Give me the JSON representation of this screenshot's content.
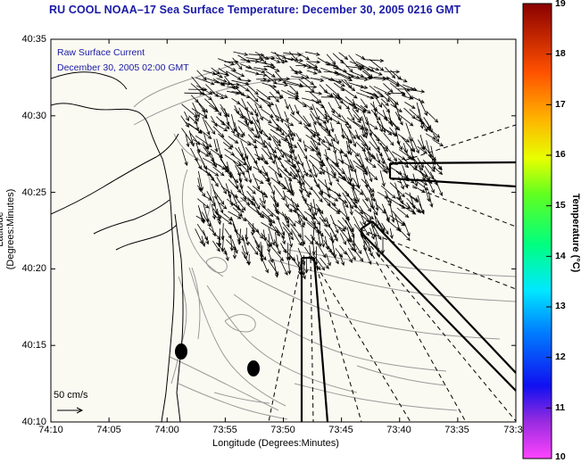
{
  "title": "RU COOL  NOAA–17  Sea Surface Temperature:  December 30, 2005 0216 GMT",
  "annotation": {
    "line1": "Raw Surface Current",
    "line2": "December 30, 2005 02:00 GMT"
  },
  "axes": {
    "xlabel": "Longitude (Degrees:Minutes)",
    "ylabel": "Latitude (Degrees:Minutes)",
    "xticks": [
      "74:10",
      "74:05",
      "74:00",
      "73:55",
      "73:50",
      "73:45",
      "73:40",
      "73:35",
      "73:3"
    ],
    "yticks": [
      "40:35",
      "40:30",
      "40:25",
      "40:20",
      "40:15",
      "40:10"
    ]
  },
  "colorbar": {
    "label": "Temperature (°C)",
    "min": 10,
    "max": 19,
    "ticks": [
      "19",
      "18",
      "17",
      "16",
      "15",
      "14",
      "13",
      "12",
      "11",
      "10"
    ]
  },
  "scale_vector": {
    "label": "50 cm/s"
  },
  "colors": {
    "title": "#1a1aa6",
    "land": "#fbfaf2",
    "contour": "#9a9a9a",
    "vector": "#000000"
  }
}
